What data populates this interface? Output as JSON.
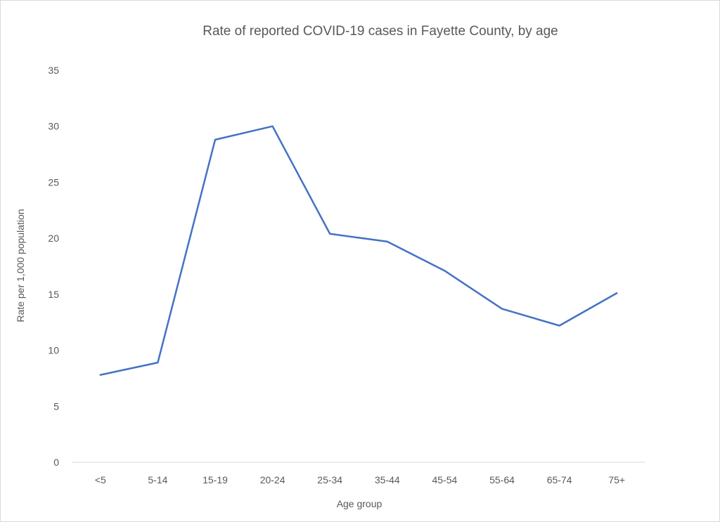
{
  "chart_data": {
    "type": "line",
    "title": "Rate of reported COVID-19 cases in Fayette County, by age",
    "xlabel": "Age group",
    "ylabel": "Rate per 1,000 population",
    "categories": [
      "<5",
      "5-14",
      "15-19",
      "20-24",
      "25-34",
      "35-44",
      "45-54",
      "55-64",
      "65-74",
      "75+"
    ],
    "series": [
      {
        "values": [
          7.8,
          8.9,
          28.8,
          30.0,
          20.4,
          19.7,
          17.1,
          13.7,
          12.2,
          15.1
        ],
        "color": "#4472c4"
      }
    ],
    "ylim": [
      0,
      35
    ],
    "yticks": [
      0,
      5,
      10,
      15,
      20,
      25,
      30,
      35
    ],
    "grid": false,
    "legend": "none"
  }
}
